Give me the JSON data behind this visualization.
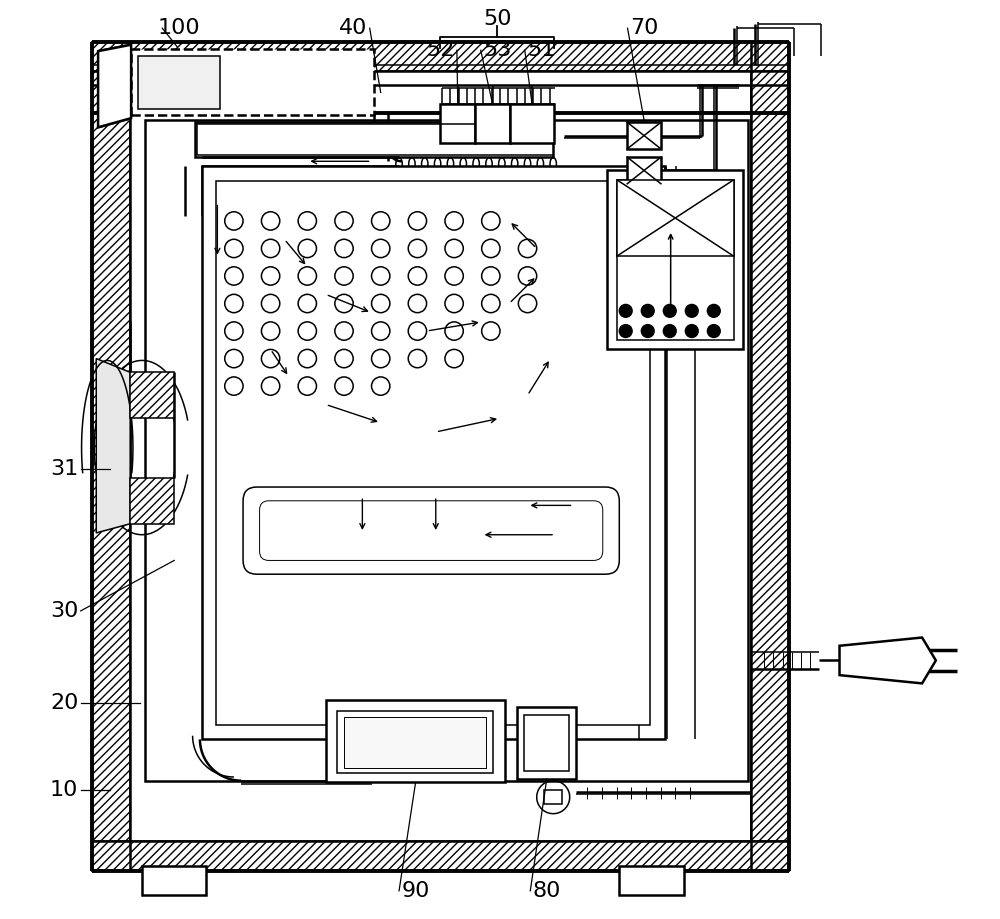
{
  "background_color": "#ffffff",
  "figsize": [
    10.0,
    9.19
  ],
  "dpi": 100,
  "lw_thick": 2.8,
  "lw_med": 1.8,
  "lw_thin": 1.1,
  "lw_vthin": 0.7
}
